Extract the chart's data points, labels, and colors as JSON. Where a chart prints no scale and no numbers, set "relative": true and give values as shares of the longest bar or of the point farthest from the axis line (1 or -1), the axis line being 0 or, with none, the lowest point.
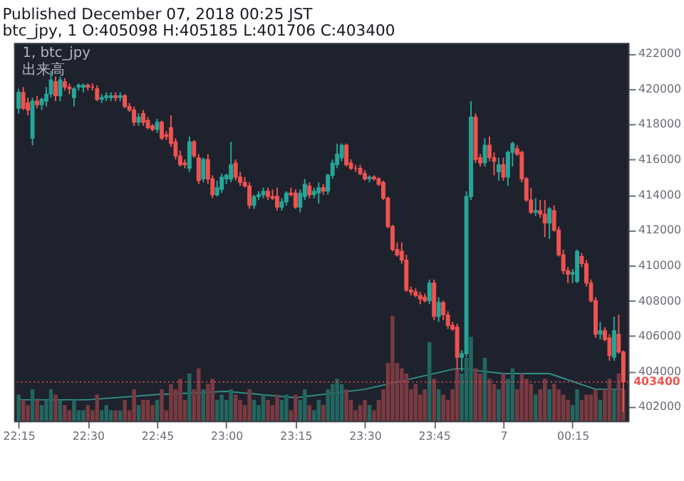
{
  "chart_data": [
    {
      "type": "candlestick",
      "title": "Published December 07, 2018 00:25 JST",
      "subtitle": "btc_jpy, 1 O:405098 H:405185 L:401706 C:403400",
      "annotations": [
        "1, btc_jpy"
      ],
      "xlim": [
        "2018-12-06T22:14",
        "2018-12-07T00:27"
      ],
      "ylim": [
        401200,
        422600
      ],
      "xticks": [
        {
          "value": "2018-12-06T22:15",
          "label": "22:15"
        },
        {
          "value": "2018-12-06T22:30",
          "label": "22:30"
        },
        {
          "value": "2018-12-06T22:45",
          "label": "22:45"
        },
        {
          "value": "2018-12-06T23:00",
          "label": "23:00"
        },
        {
          "value": "2018-12-06T23:15",
          "label": "23:15"
        },
        {
          "value": "2018-12-06T23:30",
          "label": "23:30"
        },
        {
          "value": "2018-12-06T23:45",
          "label": "23:45"
        },
        {
          "value": "2018-12-07T00:00",
          "label": "7"
        },
        {
          "value": "2018-12-07T00:15",
          "label": "00:15"
        }
      ],
      "yticks": [
        402000,
        404000,
        406000,
        408000,
        410000,
        412000,
        414000,
        416000,
        418000,
        420000,
        422000
      ],
      "ref_lines": [
        {
          "axis": "y",
          "value": 403400,
          "label": "403400",
          "color": "#ef5350",
          "line_style": "dotted"
        }
      ],
      "x": [
        "2018-12-06T22:15",
        "2018-12-06T22:16",
        "2018-12-06T22:17",
        "2018-12-06T22:18",
        "2018-12-06T22:19",
        "2018-12-06T22:20",
        "2018-12-06T22:21",
        "2018-12-06T22:22",
        "2018-12-06T22:23",
        "2018-12-06T22:24",
        "2018-12-06T22:25",
        "2018-12-06T22:26",
        "2018-12-06T22:27",
        "2018-12-06T22:28",
        "2018-12-06T22:29",
        "2018-12-06T22:30",
        "2018-12-06T22:31",
        "2018-12-06T22:32",
        "2018-12-06T22:33",
        "2018-12-06T22:34",
        "2018-12-06T22:35",
        "2018-12-06T22:36",
        "2018-12-06T22:37",
        "2018-12-06T22:38",
        "2018-12-06T22:39",
        "2018-12-06T22:40",
        "2018-12-06T22:41",
        "2018-12-06T22:42",
        "2018-12-06T22:43",
        "2018-12-06T22:44",
        "2018-12-06T22:45",
        "2018-12-06T22:46",
        "2018-12-06T22:47",
        "2018-12-06T22:48",
        "2018-12-06T22:49",
        "2018-12-06T22:50",
        "2018-12-06T22:51",
        "2018-12-06T22:52",
        "2018-12-06T22:53",
        "2018-12-06T22:54",
        "2018-12-06T22:55",
        "2018-12-06T22:56",
        "2018-12-06T22:57",
        "2018-12-06T22:58",
        "2018-12-06T22:59",
        "2018-12-06T23:00",
        "2018-12-06T23:01",
        "2018-12-06T23:02",
        "2018-12-06T23:03",
        "2018-12-06T23:04",
        "2018-12-06T23:05",
        "2018-12-06T23:06",
        "2018-12-06T23:07",
        "2018-12-06T23:08",
        "2018-12-06T23:09",
        "2018-12-06T23:10",
        "2018-12-06T23:11",
        "2018-12-06T23:12",
        "2018-12-06T23:13",
        "2018-12-06T23:14",
        "2018-12-06T23:15",
        "2018-12-06T23:16",
        "2018-12-06T23:17",
        "2018-12-06T23:18",
        "2018-12-06T23:19",
        "2018-12-06T23:20",
        "2018-12-06T23:21",
        "2018-12-06T23:22",
        "2018-12-06T23:23",
        "2018-12-06T23:24",
        "2018-12-06T23:25",
        "2018-12-06T23:26",
        "2018-12-06T23:27",
        "2018-12-06T23:28",
        "2018-12-06T23:29",
        "2018-12-06T23:30",
        "2018-12-06T23:31",
        "2018-12-06T23:32",
        "2018-12-06T23:33",
        "2018-12-06T23:34",
        "2018-12-06T23:35",
        "2018-12-06T23:36",
        "2018-12-06T23:37",
        "2018-12-06T23:38",
        "2018-12-06T23:39",
        "2018-12-06T23:40",
        "2018-12-06T23:41",
        "2018-12-06T23:42",
        "2018-12-06T23:43",
        "2018-12-06T23:44",
        "2018-12-06T23:45",
        "2018-12-06T23:46",
        "2018-12-06T23:47",
        "2018-12-06T23:48",
        "2018-12-06T23:49",
        "2018-12-06T23:50",
        "2018-12-06T23:51",
        "2018-12-06T23:52",
        "2018-12-06T23:53",
        "2018-12-06T23:54",
        "2018-12-06T23:55",
        "2018-12-06T23:56",
        "2018-12-06T23:57",
        "2018-12-06T23:58",
        "2018-12-06T23:59",
        "2018-12-07T00:00",
        "2018-12-07T00:01",
        "2018-12-07T00:02",
        "2018-12-07T00:03",
        "2018-12-07T00:04",
        "2018-12-07T00:05",
        "2018-12-07T00:06",
        "2018-12-07T00:07",
        "2018-12-07T00:08",
        "2018-12-07T00:09",
        "2018-12-07T00:10",
        "2018-12-07T00:11",
        "2018-12-07T00:12",
        "2018-12-07T00:13",
        "2018-12-07T00:14",
        "2018-12-07T00:15",
        "2018-12-07T00:16",
        "2018-12-07T00:17",
        "2018-12-07T00:18",
        "2018-12-07T00:19",
        "2018-12-07T00:20",
        "2018-12-07T00:21",
        "2018-12-07T00:22",
        "2018-12-07T00:23",
        "2018-12-07T00:24",
        "2018-12-07T00:25",
        "2018-12-07T00:26"
      ],
      "ohlc": [
        [
          418900,
          420000,
          418600,
          419800
        ],
        [
          419800,
          420100,
          418800,
          418900
        ],
        [
          419200,
          419500,
          418500,
          418800
        ],
        [
          417200,
          419500,
          416800,
          419300
        ],
        [
          419300,
          419600,
          418900,
          419100
        ],
        [
          419100,
          419500,
          418800,
          419400
        ],
        [
          419300,
          420100,
          419000,
          419700
        ],
        [
          419700,
          421000,
          419500,
          420500
        ],
        [
          420400,
          420700,
          419300,
          419600
        ],
        [
          419600,
          420700,
          419300,
          420500
        ],
        [
          420400,
          420600,
          419900,
          420100
        ],
        [
          420100,
          420300,
          419700,
          420000
        ],
        [
          419500,
          420100,
          419000,
          420000
        ],
        [
          420100,
          420300,
          419900,
          420200
        ],
        [
          420100,
          420300,
          419800,
          420200
        ],
        [
          420200,
          420300,
          419900,
          420100
        ],
        [
          420100,
          420300,
          419900,
          420100
        ],
        [
          420000,
          420200,
          419300,
          419400
        ],
        [
          419400,
          419700,
          419200,
          419500
        ],
        [
          419500,
          419800,
          419300,
          419600
        ],
        [
          419500,
          419800,
          419300,
          419600
        ],
        [
          419600,
          419800,
          419300,
          419500
        ],
        [
          419500,
          419800,
          419300,
          419600
        ],
        [
          419600,
          419700,
          418900,
          419000
        ],
        [
          419000,
          419200,
          418700,
          418800
        ],
        [
          418800,
          419000,
          417900,
          418100
        ],
        [
          418100,
          418600,
          417900,
          418400
        ],
        [
          418600,
          418800,
          417900,
          418100
        ],
        [
          418200,
          418400,
          417700,
          417800
        ],
        [
          417900,
          418000,
          417600,
          417700
        ],
        [
          417700,
          418300,
          417500,
          418100
        ],
        [
          418100,
          418200,
          417100,
          417200
        ],
        [
          417400,
          417600,
          417100,
          417300
        ],
        [
          417800,
          418500,
          416700,
          416900
        ],
        [
          417000,
          417200,
          416000,
          416200
        ],
        [
          416200,
          416500,
          415600,
          415700
        ],
        [
          415800,
          416000,
          415500,
          415700
        ],
        [
          415500,
          417300,
          415300,
          417000
        ],
        [
          417000,
          417100,
          416100,
          416200
        ],
        [
          416100,
          416300,
          414600,
          414800
        ],
        [
          414900,
          416100,
          414700,
          416000
        ],
        [
          416000,
          416300,
          414600,
          414900
        ],
        [
          414900,
          415100,
          413800,
          414000
        ],
        [
          414000,
          414800,
          413900,
          414400
        ],
        [
          414300,
          415200,
          414100,
          415000
        ],
        [
          414900,
          415200,
          414600,
          415100
        ],
        [
          414900,
          417000,
          414700,
          415700
        ],
        [
          415800,
          416000,
          414800,
          415000
        ],
        [
          415000,
          415300,
          414500,
          414700
        ],
        [
          414700,
          415000,
          414400,
          414500
        ],
        [
          414500,
          414700,
          413200,
          413400
        ],
        [
          413400,
          414000,
          413200,
          413900
        ],
        [
          413900,
          414200,
          413700,
          414000
        ],
        [
          414000,
          414400,
          413800,
          414200
        ],
        [
          414200,
          414400,
          413700,
          413900
        ],
        [
          413900,
          414300,
          413700,
          413800
        ],
        [
          413900,
          414400,
          413100,
          413300
        ],
        [
          413300,
          413800,
          413100,
          413600
        ],
        [
          413600,
          414200,
          413400,
          414100
        ],
        [
          414100,
          414400,
          413900,
          414000
        ],
        [
          414100,
          414300,
          413200,
          413300
        ],
        [
          413300,
          414300,
          413000,
          414100
        ],
        [
          413900,
          414900,
          413700,
          414600
        ],
        [
          414500,
          414700,
          413800,
          414000
        ],
        [
          414000,
          414400,
          413800,
          414200
        ],
        [
          414100,
          414700,
          413500,
          414400
        ],
        [
          414400,
          414600,
          414000,
          414200
        ],
        [
          414200,
          415200,
          414000,
          415100
        ],
        [
          415100,
          416000,
          414900,
          415800
        ],
        [
          415700,
          416900,
          415500,
          416300
        ],
        [
          416100,
          416900,
          415900,
          416800
        ],
        [
          416800,
          416900,
          415600,
          415700
        ],
        [
          415800,
          416000,
          415400,
          415500
        ],
        [
          415500,
          415700,
          415300,
          415500
        ],
        [
          415500,
          415700,
          415100,
          415200
        ],
        [
          415200,
          415400,
          414800,
          414900
        ],
        [
          414900,
          415100,
          414700,
          415000
        ],
        [
          415000,
          415100,
          414800,
          414900
        ],
        [
          414900,
          415000,
          414500,
          414600
        ],
        [
          414700,
          414800,
          413700,
          413800
        ],
        [
          413800,
          413900,
          412100,
          412200
        ],
        [
          412200,
          412300,
          410800,
          410900
        ],
        [
          410900,
          411300,
          410500,
          410600
        ],
        [
          410800,
          411300,
          410100,
          410300
        ],
        [
          410300,
          410600,
          408500,
          408600
        ],
        [
          408600,
          408800,
          408300,
          408500
        ],
        [
          408500,
          408700,
          408200,
          408300
        ],
        [
          408300,
          408500,
          407800,
          408100
        ],
        [
          408200,
          408400,
          407900,
          408000
        ],
        [
          408000,
          409200,
          407800,
          409000
        ],
        [
          409000,
          409200,
          406900,
          407100
        ],
        [
          407100,
          408200,
          406800,
          407900
        ],
        [
          407900,
          408000,
          406900,
          407200
        ],
        [
          407200,
          407400,
          406400,
          406600
        ],
        [
          406600,
          406800,
          406300,
          406400
        ],
        [
          406500,
          406700,
          404100,
          404800
        ],
        [
          404800,
          405200,
          404000,
          405000
        ],
        [
          405000,
          414200,
          404800,
          413900
        ],
        [
          413900,
          419300,
          413700,
          418400
        ],
        [
          418400,
          418600,
          415800,
          416000
        ],
        [
          416100,
          416300,
          415600,
          415800
        ],
        [
          415800,
          417200,
          415600,
          416800
        ],
        [
          416800,
          417300,
          415900,
          416100
        ],
        [
          416100,
          416400,
          415100,
          415900
        ],
        [
          415300,
          416100,
          414800,
          415700
        ],
        [
          415700,
          416100,
          414800,
          415000
        ],
        [
          415000,
          416500,
          414500,
          416400
        ],
        [
          416400,
          417000,
          415600,
          416900
        ],
        [
          416600,
          416800,
          416200,
          416300
        ],
        [
          416400,
          416500,
          414700,
          414900
        ],
        [
          414900,
          415000,
          413600,
          413700
        ],
        [
          413700,
          414400,
          412900,
          413000
        ],
        [
          413000,
          413800,
          412800,
          413100
        ],
        [
          413100,
          413700,
          412700,
          412900
        ],
        [
          412900,
          413700,
          411600,
          412400
        ],
        [
          412400,
          413300,
          411500,
          413200
        ],
        [
          413100,
          413400,
          411900,
          412000
        ],
        [
          412000,
          412200,
          410500,
          410600
        ],
        [
          410600,
          410900,
          409500,
          409700
        ],
        [
          409700,
          409900,
          409000,
          409500
        ],
        [
          409500,
          409800,
          409000,
          409600
        ],
        [
          409100,
          410900,
          409000,
          410800
        ],
        [
          410500,
          410700,
          409900,
          410100
        ],
        [
          410100,
          410300,
          408800,
          409000
        ],
        [
          409000,
          409200,
          407900,
          408000
        ],
        [
          408000,
          408200,
          405900,
          406100
        ],
        [
          406100,
          406800,
          405800,
          406300
        ],
        [
          406300,
          406500,
          405700,
          405800
        ],
        [
          405900,
          406100,
          404600,
          404900
        ],
        [
          404800,
          407100,
          404600,
          406300
        ],
        [
          406100,
          407200,
          405000,
          405100
        ],
        [
          405098,
          405185,
          401706,
          403400
        ]
      ],
      "colors": [
        "#26a69a",
        "#ef5350",
        "#ef5350",
        "#26a69a",
        "#ef5350",
        "#26a69a",
        "#26a69a",
        "#26a69a",
        "#ef5350",
        "#26a69a",
        "#ef5350",
        "#ef5350",
        "#26a69a",
        "#26a69a",
        "#26a69a",
        "#ef5350",
        "#ef5350",
        "#ef5350",
        "#26a69a",
        "#26a69a",
        "#26a69a",
        "#ef5350",
        "#26a69a",
        "#ef5350",
        "#ef5350",
        "#ef5350",
        "#26a69a",
        "#ef5350",
        "#ef5350",
        "#ef5350",
        "#26a69a",
        "#ef5350",
        "#ef5350",
        "#ef5350",
        "#ef5350",
        "#ef5350",
        "#ef5350",
        "#26a69a",
        "#ef5350",
        "#ef5350",
        "#26a69a",
        "#ef5350",
        "#ef5350",
        "#26a69a",
        "#26a69a",
        "#26a69a",
        "#26a69a",
        "#ef5350",
        "#ef5350",
        "#ef5350",
        "#ef5350",
        "#26a69a",
        "#26a69a",
        "#26a69a",
        "#ef5350",
        "#ef5350",
        "#ef5350",
        "#26a69a",
        "#26a69a",
        "#ef5350",
        "#ef5350",
        "#26a69a",
        "#26a69a",
        "#ef5350",
        "#26a69a",
        "#26a69a",
        "#ef5350",
        "#26a69a",
        "#26a69a",
        "#26a69a",
        "#26a69a",
        "#ef5350",
        "#ef5350",
        "#ef5350",
        "#ef5350",
        "#ef5350",
        "#26a69a",
        "#ef5350",
        "#ef5350",
        "#ef5350",
        "#ef5350",
        "#ef5350",
        "#ef5350",
        "#ef5350",
        "#ef5350",
        "#ef5350",
        "#ef5350",
        "#ef5350",
        "#ef5350",
        "#26a69a",
        "#ef5350",
        "#26a69a",
        "#ef5350",
        "#ef5350",
        "#ef5350",
        "#ef5350",
        "#26a69a",
        "#26a69a",
        "#26a69a",
        "#ef5350",
        "#ef5350",
        "#26a69a",
        "#ef5350",
        "#ef5350",
        "#26a69a",
        "#ef5350",
        "#26a69a",
        "#26a69a",
        "#ef5350",
        "#ef5350",
        "#ef5350",
        "#ef5350",
        "#26a69a",
        "#ef5350",
        "#ef5350",
        "#26a69a",
        "#ef5350",
        "#ef5350",
        "#ef5350",
        "#ef5350",
        "#26a69a",
        "#26a69a",
        "#ef5350",
        "#ef5350",
        "#ef5350",
        "#ef5350",
        "#26a69a",
        "#ef5350",
        "#ef5350",
        "#26a69a",
        "#ef5350",
        "#ef5350"
      ]
    },
    {
      "type": "bar",
      "title": "出来高",
      "relative": true,
      "tick_labels": false,
      "xlim": [
        "2018-12-06T22:14",
        "2018-12-07T00:27"
      ],
      "x": [
        "2018-12-06T22:15",
        "2018-12-06T22:16",
        "2018-12-06T22:17",
        "2018-12-06T22:18",
        "2018-12-06T22:19",
        "2018-12-06T22:20",
        "2018-12-06T22:21",
        "2018-12-06T22:22",
        "2018-12-06T22:23",
        "2018-12-06T22:24",
        "2018-12-06T22:25",
        "2018-12-06T22:26",
        "2018-12-06T22:27",
        "2018-12-06T22:28",
        "2018-12-06T22:29",
        "2018-12-06T22:30",
        "2018-12-06T22:31",
        "2018-12-06T22:32",
        "2018-12-06T22:33",
        "2018-12-06T22:34",
        "2018-12-06T22:35",
        "2018-12-06T22:36",
        "2018-12-06T22:37",
        "2018-12-06T22:38",
        "2018-12-06T22:39",
        "2018-12-06T22:40",
        "2018-12-06T22:41",
        "2018-12-06T22:42",
        "2018-12-06T22:43",
        "2018-12-06T22:44",
        "2018-12-06T22:45",
        "2018-12-06T22:46",
        "2018-12-06T22:47",
        "2018-12-06T22:48",
        "2018-12-06T22:49",
        "2018-12-06T22:50",
        "2018-12-06T22:51",
        "2018-12-06T22:52",
        "2018-12-06T22:53",
        "2018-12-06T22:54",
        "2018-12-06T22:55",
        "2018-12-06T22:56",
        "2018-12-06T22:57",
        "2018-12-06T22:58",
        "2018-12-06T22:59",
        "2018-12-06T23:00",
        "2018-12-06T23:01",
        "2018-12-06T23:02",
        "2018-12-06T23:03",
        "2018-12-06T23:04",
        "2018-12-06T23:05",
        "2018-12-06T23:06",
        "2018-12-06T23:07",
        "2018-12-06T23:08",
        "2018-12-06T23:09",
        "2018-12-06T23:10",
        "2018-12-06T23:11",
        "2018-12-06T23:12",
        "2018-12-06T23:13",
        "2018-12-06T23:14",
        "2018-12-06T23:15",
        "2018-12-06T23:16",
        "2018-12-06T23:17",
        "2018-12-06T23:18",
        "2018-12-06T23:19",
        "2018-12-06T23:20",
        "2018-12-06T23:21",
        "2018-12-06T23:22",
        "2018-12-06T23:23",
        "2018-12-06T23:24",
        "2018-12-06T23:25",
        "2018-12-06T23:26",
        "2018-12-06T23:27",
        "2018-12-06T23:28",
        "2018-12-06T23:29",
        "2018-12-06T23:30",
        "2018-12-06T23:31",
        "2018-12-06T23:32",
        "2018-12-06T23:33",
        "2018-12-06T23:34",
        "2018-12-06T23:35",
        "2018-12-06T23:36",
        "2018-12-06T23:37",
        "2018-12-06T23:38",
        "2018-12-06T23:39",
        "2018-12-06T23:40",
        "2018-12-06T23:41",
        "2018-12-06T23:42",
        "2018-12-06T23:43",
        "2018-12-06T23:44",
        "2018-12-06T23:45",
        "2018-12-06T23:46",
        "2018-12-06T23:47",
        "2018-12-06T23:48",
        "2018-12-06T23:49",
        "2018-12-06T23:50",
        "2018-12-06T23:51",
        "2018-12-06T23:52",
        "2018-12-06T23:53",
        "2018-12-06T23:54",
        "2018-12-06T23:55",
        "2018-12-06T23:56",
        "2018-12-06T23:57",
        "2018-12-06T23:58",
        "2018-12-06T23:59",
        "2018-12-07T00:00",
        "2018-12-07T00:01",
        "2018-12-07T00:02",
        "2018-12-07T00:03",
        "2018-12-07T00:04",
        "2018-12-07T00:05",
        "2018-12-07T00:06",
        "2018-12-07T00:07",
        "2018-12-07T00:08",
        "2018-12-07T00:09",
        "2018-12-07T00:10",
        "2018-12-07T00:11",
        "2018-12-07T00:12",
        "2018-12-07T00:13",
        "2018-12-07T00:14",
        "2018-12-07T00:15",
        "2018-12-07T00:16",
        "2018-12-07T00:17",
        "2018-12-07T00:18",
        "2018-12-07T00:19",
        "2018-12-07T00:20",
        "2018-12-07T00:21",
        "2018-12-07T00:22",
        "2018-12-07T00:23",
        "2018-12-07T00:24",
        "2018-12-07T00:25",
        "2018-12-07T00:26"
      ],
      "series": [
        {
          "type": "bar",
          "values": [
            0.25,
            0.2,
            0.15,
            0.3,
            0.2,
            0.15,
            0.2,
            0.3,
            0.25,
            0.2,
            0.15,
            0.1,
            0.2,
            0.1,
            0.1,
            0.15,
            0.1,
            0.25,
            0.1,
            0.15,
            0.1,
            0.1,
            0.1,
            0.2,
            0.1,
            0.3,
            0.15,
            0.2,
            0.2,
            0.15,
            0.2,
            0.3,
            0.1,
            0.35,
            0.3,
            0.4,
            0.2,
            0.45,
            0.3,
            0.5,
            0.3,
            0.35,
            0.4,
            0.2,
            0.25,
            0.2,
            0.3,
            0.25,
            0.2,
            0.15,
            0.3,
            0.2,
            0.15,
            0.25,
            0.2,
            0.15,
            0.25,
            0.2,
            0.25,
            0.1,
            0.25,
            0.2,
            0.3,
            0.15,
            0.1,
            0.2,
            0.15,
            0.3,
            0.35,
            0.4,
            0.35,
            0.3,
            0.2,
            0.1,
            0.15,
            0.2,
            0.15,
            0.1,
            0.2,
            0.3,
            0.55,
            1.0,
            0.55,
            0.5,
            0.45,
            0.3,
            0.35,
            0.25,
            0.3,
            0.75,
            0.4,
            0.3,
            0.25,
            0.2,
            0.3,
            0.5,
            0.45,
            0.6,
            0.8,
            0.5,
            0.45,
            0.6,
            0.4,
            0.35,
            0.3,
            0.45,
            0.4,
            0.5,
            0.3,
            0.45,
            0.4,
            0.35,
            0.25,
            0.3,
            0.4,
            0.3,
            0.35,
            0.3,
            0.25,
            0.2,
            0.15,
            0.3,
            0.2,
            0.25,
            0.25,
            0.3,
            0.2,
            0.3,
            0.4,
            0.3,
            0.45,
            0.3
          ],
          "colors": [
            "#23665f",
            "#7a3a41",
            "#7a3a41",
            "#23665f",
            "#7a3a41",
            "#23665f",
            "#23665f",
            "#23665f",
            "#7a3a41",
            "#23665f",
            "#7a3a41",
            "#7a3a41",
            "#23665f",
            "#23665f",
            "#23665f",
            "#7a3a41",
            "#7a3a41",
            "#7a3a41",
            "#23665f",
            "#23665f",
            "#23665f",
            "#7a3a41",
            "#23665f",
            "#7a3a41",
            "#7a3a41",
            "#7a3a41",
            "#23665f",
            "#7a3a41",
            "#7a3a41",
            "#7a3a41",
            "#23665f",
            "#7a3a41",
            "#7a3a41",
            "#7a3a41",
            "#7a3a41",
            "#7a3a41",
            "#7a3a41",
            "#23665f",
            "#7a3a41",
            "#7a3a41",
            "#23665f",
            "#7a3a41",
            "#7a3a41",
            "#23665f",
            "#23665f",
            "#23665f",
            "#23665f",
            "#7a3a41",
            "#7a3a41",
            "#7a3a41",
            "#7a3a41",
            "#23665f",
            "#23665f",
            "#23665f",
            "#7a3a41",
            "#7a3a41",
            "#7a3a41",
            "#23665f",
            "#23665f",
            "#7a3a41",
            "#7a3a41",
            "#23665f",
            "#23665f",
            "#7a3a41",
            "#23665f",
            "#23665f",
            "#7a3a41",
            "#23665f",
            "#23665f",
            "#23665f",
            "#23665f",
            "#7a3a41",
            "#7a3a41",
            "#7a3a41",
            "#7a3a41",
            "#7a3a41",
            "#23665f",
            "#7a3a41",
            "#7a3a41",
            "#7a3a41",
            "#7a3a41",
            "#7a3a41",
            "#7a3a41",
            "#7a3a41",
            "#7a3a41",
            "#7a3a41",
            "#7a3a41",
            "#7a3a41",
            "#7a3a41",
            "#23665f",
            "#7a3a41",
            "#23665f",
            "#7a3a41",
            "#7a3a41",
            "#7a3a41",
            "#7a3a41",
            "#23665f",
            "#23665f",
            "#23665f",
            "#7a3a41",
            "#7a3a41",
            "#23665f",
            "#7a3a41",
            "#7a3a41",
            "#23665f",
            "#7a3a41",
            "#23665f",
            "#23665f",
            "#7a3a41",
            "#7a3a41",
            "#7a3a41",
            "#7a3a41",
            "#23665f",
            "#7a3a41",
            "#7a3a41",
            "#23665f",
            "#7a3a41",
            "#7a3a41",
            "#7a3a41",
            "#7a3a41",
            "#23665f",
            "#23665f",
            "#7a3a41",
            "#7a3a41",
            "#7a3a41",
            "#7a3a41",
            "#23665f",
            "#7a3a41",
            "#7a3a41",
            "#23665f",
            "#7a3a41",
            "#7a3a41"
          ]
        },
        {
          "type": "line",
          "color": "#2f8f88",
          "x": [
            "2018-12-06T22:15",
            "2018-12-06T22:30",
            "2018-12-06T22:45",
            "2018-12-06T23:00",
            "2018-12-06T23:15",
            "2018-12-06T23:30",
            "2018-12-06T23:40",
            "2018-12-06T23:50",
            "2018-12-07T00:00",
            "2018-12-07T00:10",
            "2018-12-07T00:20",
            "2018-12-07T00:26"
          ],
          "values": [
            0.2,
            0.2,
            0.25,
            0.28,
            0.22,
            0.3,
            0.4,
            0.5,
            0.45,
            0.45,
            0.3,
            0.3
          ]
        }
      ]
    }
  ]
}
